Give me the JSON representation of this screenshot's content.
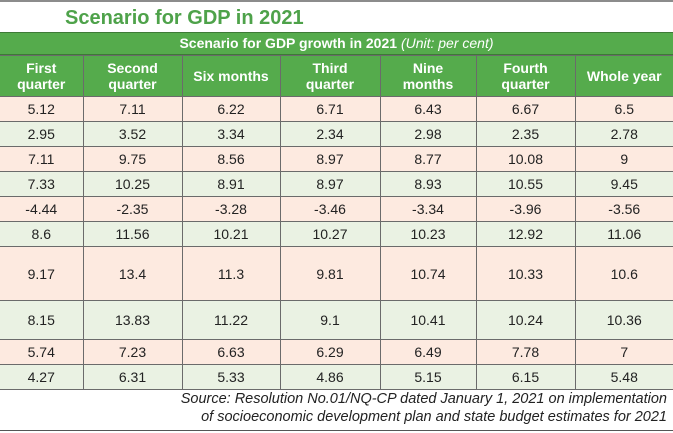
{
  "chart_data": {
    "type": "table",
    "title": "Scenario for GDP in 2021",
    "subtitle": "Scenario for GDP growth in 2021",
    "unit_note": "(Unit: per cent)",
    "columns": [
      "First quarter",
      "Second quarter",
      "Six months",
      "Third quarter",
      "Nine months",
      "Fourth quarter",
      "Whole year"
    ],
    "columns_split": [
      [
        "First",
        "quarter"
      ],
      [
        "Second",
        "quarter"
      ],
      [
        "Six months"
      ],
      [
        "Third",
        "quarter"
      ],
      [
        "Nine",
        "months"
      ],
      [
        "Fourth",
        "quarter"
      ],
      [
        "Whole year"
      ]
    ],
    "rows": [
      [
        "5.12",
        "7.11",
        "6.22",
        "6.71",
        "6.43",
        "6.67",
        "6.5"
      ],
      [
        "2.95",
        "3.52",
        "3.34",
        "2.34",
        "2.98",
        "2.35",
        "2.78"
      ],
      [
        "7.11",
        "9.75",
        "8.56",
        "8.97",
        "8.77",
        "10.08",
        "9"
      ],
      [
        "7.33",
        "10.25",
        "8.91",
        "8.97",
        "8.93",
        "10.55",
        "9.45"
      ],
      [
        "-4.44",
        "-2.35",
        "-3.28",
        "-3.46",
        "-3.34",
        "-3.96",
        "-3.56"
      ],
      [
        "8.6",
        "11.56",
        "10.21",
        "10.27",
        "10.23",
        "12.92",
        "11.06"
      ],
      [
        "9.17",
        "13.4",
        "11.3",
        "9.81",
        "10.74",
        "10.33",
        "10.6"
      ],
      [
        "8.15",
        "13.83",
        "11.22",
        "9.1",
        "10.41",
        "10.24",
        "10.36"
      ],
      [
        "5.74",
        "7.23",
        "6.63",
        "6.29",
        "6.49",
        "7.78",
        "7"
      ],
      [
        "4.27",
        "6.31",
        "5.33",
        "4.86",
        "5.15",
        "6.15",
        "5.48"
      ]
    ],
    "source_line1": "Source: Resolution No.01/NQ-CP dated January 1, 2021 on implementation",
    "source_line2": "of socioeconomic development plan and state budget estimates for 2021"
  },
  "colors": {
    "title": "#4ea24a",
    "header_bg": "#55ab4c",
    "row_odd": "#fdeae0",
    "row_even": "#eaf2e3"
  }
}
